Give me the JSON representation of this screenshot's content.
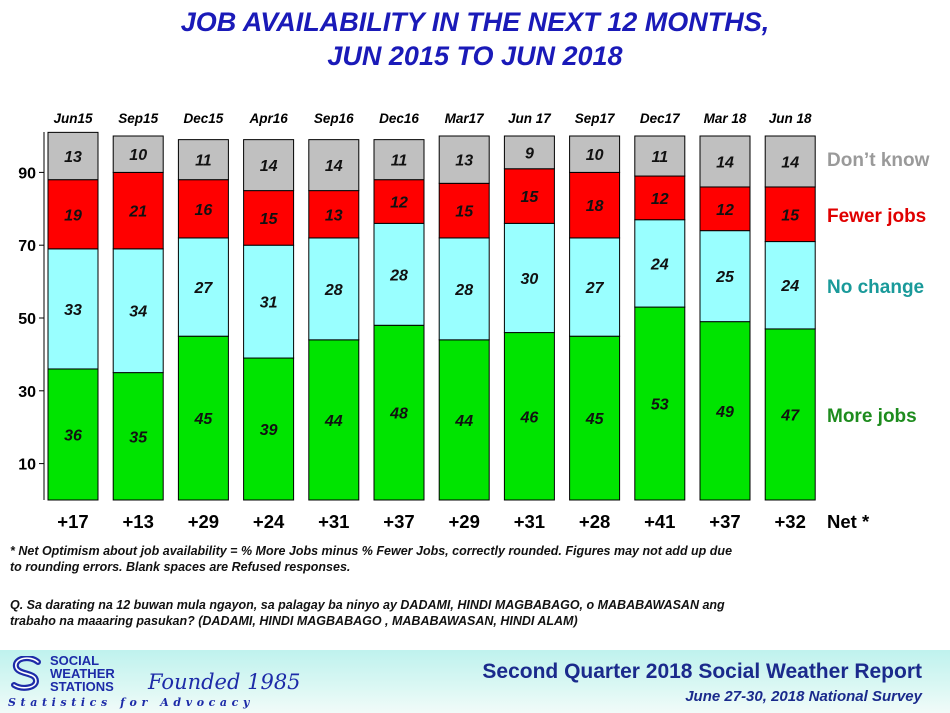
{
  "title_line1": "JOB AVAILABILITY IN THE NEXT 12 MONTHS,",
  "title_line2": "JUN 2015 TO JUN 2018",
  "chart_data": {
    "type": "bar",
    "stacked": true,
    "categories": [
      "Jun15",
      "Sep15",
      "Dec15",
      "Apr16",
      "Sep16",
      "Dec16",
      "Mar17",
      "Jun 17",
      "Sep17",
      "Dec17",
      "Mar 18",
      "Jun 18"
    ],
    "series": [
      {
        "name": "More jobs",
        "color": "#00e400",
        "label_color": "#1e8c1e",
        "values": [
          36,
          35,
          45,
          39,
          44,
          48,
          44,
          46,
          45,
          53,
          49,
          47
        ]
      },
      {
        "name": "No change",
        "color": "#99ffff",
        "label_color": "#1a9a9a",
        "values": [
          33,
          34,
          27,
          31,
          28,
          28,
          28,
          30,
          27,
          24,
          25,
          24
        ]
      },
      {
        "name": "Fewer jobs",
        "color": "#ff0000",
        "label_color": "#e00000",
        "values": [
          19,
          21,
          16,
          15,
          13,
          12,
          15,
          15,
          18,
          12,
          12,
          15
        ]
      },
      {
        "name": "Don’t know",
        "color": "#c0c0c0",
        "label_color": "#9a9a9a",
        "values": [
          13,
          10,
          11,
          14,
          14,
          11,
          13,
          9,
          10,
          11,
          14,
          14
        ]
      }
    ],
    "net_label": "Net *",
    "net": [
      "+17",
      "+13",
      "+29",
      "+24",
      "+31",
      "+37",
      "+29",
      "+31",
      "+28",
      "+41",
      "+37",
      "+32"
    ],
    "ylim": [
      0,
      100
    ],
    "yticks": [
      10,
      30,
      50,
      70,
      90
    ],
    "grid": false,
    "legend": "right"
  },
  "footnote_line1": "* Net Optimism about job availability = % More Jobs minus % Fewer Jobs, correctly rounded. Figures may not add up due",
  "footnote_line2": "to rounding errors. Blank spaces are Refused responses.",
  "question_line1": "Q. Sa darating na 12 buwan mula ngayon, sa palagay ba ninyo ay DADAMI, HINDI MAGBABAGO, o MABABAWASAN ang",
  "question_line2": "trabaho na maaaring pasukan? (DADAMI, HINDI MAGBABAGO , MABABAWASAN, HINDI ALAM)",
  "logo": {
    "line1": "SOCIAL",
    "line2": "WEATHER",
    "line3": "STATIONS",
    "founded": "Founded 1985",
    "tagline": "Statistics for Advocacy"
  },
  "report_title": "Second Quarter 2018 Social Weather Report",
  "report_subtitle": "June 27-30, 2018 National Survey"
}
